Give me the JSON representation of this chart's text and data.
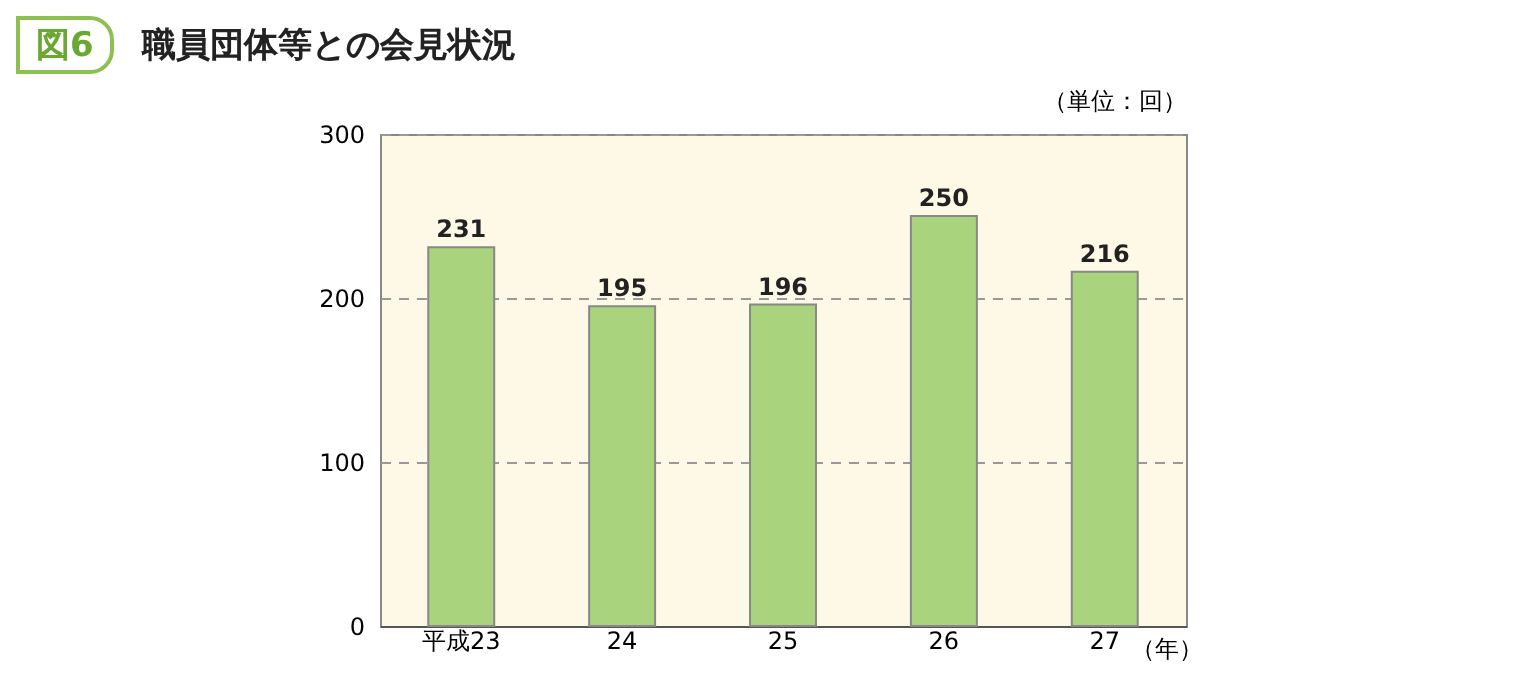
{
  "chart_data": {
    "type": "bar",
    "title": "職員団体等との会見状況",
    "annotations": [
      "図6"
    ],
    "ylabel": "（単位：回）",
    "xlabel": "（年）",
    "categories": [
      "平成23",
      "24",
      "25",
      "26",
      "27"
    ],
    "values": [
      231,
      195,
      196,
      250,
      216
    ],
    "color": "#a9d37c",
    "data_labels": true,
    "ylim": [
      0,
      300
    ],
    "yticks": [
      0,
      100,
      200,
      300
    ],
    "grid": "y"
  }
}
